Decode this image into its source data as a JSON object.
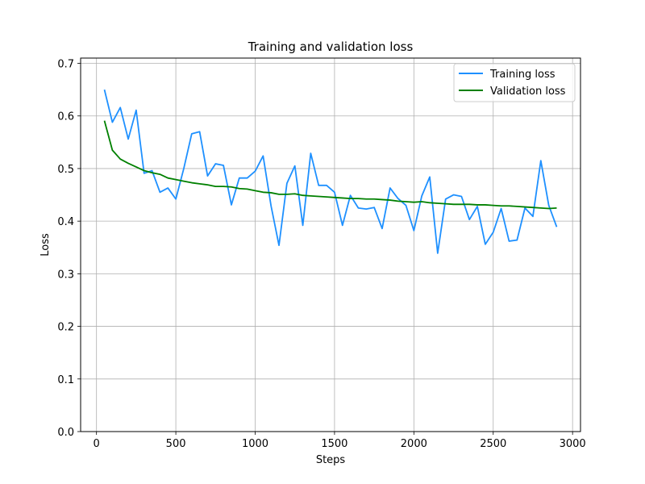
{
  "chart_data": {
    "type": "line",
    "title": "Training and validation loss",
    "xlabel": "Steps",
    "ylabel": "Loss",
    "xlim": [
      -100,
      3050
    ],
    "ylim": [
      0.0,
      0.71
    ],
    "xticks": [
      0,
      500,
      1000,
      1500,
      2000,
      2500,
      3000
    ],
    "yticks": [
      0.0,
      0.1,
      0.2,
      0.3,
      0.4,
      0.5,
      0.6,
      0.7
    ],
    "xtick_labels": [
      "0",
      "500",
      "1000",
      "1500",
      "2000",
      "2500",
      "3000"
    ],
    "ytick_labels": [
      "0.0",
      "0.1",
      "0.2",
      "0.3",
      "0.4",
      "0.5",
      "0.6",
      "0.7"
    ],
    "grid": true,
    "legend_position": "top-right",
    "series": [
      {
        "name": "Training loss",
        "color": "#1e90ff",
        "x": [
          50,
          100,
          150,
          200,
          250,
          300,
          350,
          400,
          450,
          500,
          550,
          600,
          650,
          700,
          750,
          800,
          850,
          900,
          950,
          1000,
          1050,
          1100,
          1150,
          1200,
          1250,
          1300,
          1350,
          1400,
          1450,
          1500,
          1550,
          1600,
          1650,
          1700,
          1750,
          1800,
          1850,
          1900,
          1950,
          2000,
          2050,
          2100,
          2150,
          2200,
          2250,
          2300,
          2350,
          2400,
          2450,
          2500,
          2550,
          2600,
          2650,
          2700,
          2750,
          2800,
          2850,
          2900
        ],
        "y": [
          0.65,
          0.588,
          0.616,
          0.556,
          0.611,
          0.491,
          0.496,
          0.455,
          0.463,
          0.442,
          0.5,
          0.566,
          0.57,
          0.486,
          0.509,
          0.506,
          0.431,
          0.482,
          0.482,
          0.495,
          0.524,
          0.429,
          0.354,
          0.472,
          0.505,
          0.392,
          0.529,
          0.468,
          0.468,
          0.455,
          0.392,
          0.449,
          0.425,
          0.423,
          0.426,
          0.386,
          0.463,
          0.443,
          0.43,
          0.382,
          0.448,
          0.484,
          0.339,
          0.442,
          0.45,
          0.447,
          0.403,
          0.428,
          0.356,
          0.379,
          0.424,
          0.362,
          0.364,
          0.425,
          0.409,
          0.515,
          0.43,
          0.389
        ]
      },
      {
        "name": "Validation loss",
        "color": "#008000",
        "x": [
          50,
          100,
          150,
          200,
          250,
          300,
          350,
          400,
          450,
          500,
          550,
          600,
          650,
          700,
          750,
          800,
          850,
          900,
          950,
          1000,
          1050,
          1100,
          1150,
          1200,
          1250,
          1300,
          1350,
          1400,
          1450,
          1500,
          1550,
          1600,
          1650,
          1700,
          1750,
          1800,
          1850,
          1900,
          1950,
          2000,
          2050,
          2100,
          2150,
          2200,
          2250,
          2300,
          2350,
          2400,
          2450,
          2500,
          2550,
          2600,
          2650,
          2700,
          2750,
          2800,
          2850,
          2900
        ],
        "y": [
          0.591,
          0.535,
          0.518,
          0.51,
          0.503,
          0.496,
          0.492,
          0.489,
          0.482,
          0.479,
          0.476,
          0.473,
          0.471,
          0.469,
          0.466,
          0.466,
          0.465,
          0.462,
          0.461,
          0.458,
          0.455,
          0.454,
          0.451,
          0.451,
          0.452,
          0.449,
          0.448,
          0.447,
          0.446,
          0.445,
          0.444,
          0.443,
          0.443,
          0.442,
          0.442,
          0.441,
          0.44,
          0.438,
          0.437,
          0.436,
          0.437,
          0.435,
          0.434,
          0.433,
          0.432,
          0.432,
          0.432,
          0.431,
          0.431,
          0.43,
          0.429,
          0.429,
          0.428,
          0.427,
          0.426,
          0.425,
          0.424,
          0.425
        ]
      }
    ]
  }
}
